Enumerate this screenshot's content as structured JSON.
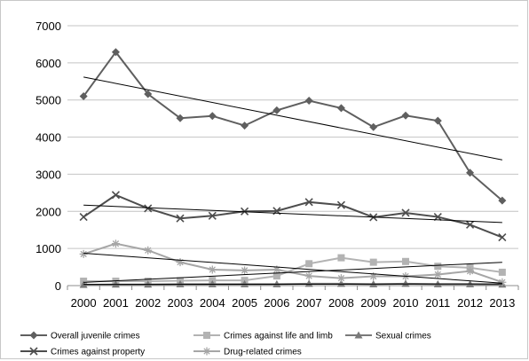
{
  "chart_data": {
    "type": "line",
    "title": "",
    "xlabel": "",
    "ylabel": "",
    "categories": [
      "2000",
      "2001",
      "2002",
      "2003",
      "2004",
      "2005",
      "2006",
      "2007",
      "2008",
      "2009",
      "2010",
      "2011",
      "2012",
      "2013"
    ],
    "ylim": [
      0,
      7000
    ],
    "yticks": [
      "0",
      "1000",
      "2000",
      "3000",
      "4000",
      "5000",
      "6000",
      "7000"
    ],
    "grid": "horizontal",
    "legend_position": "bottom",
    "trendlines": true,
    "series": [
      {
        "name": "Overall juvenile crimes",
        "marker": "diamond",
        "color": "#5f5f5f",
        "values": [
          5100,
          6290,
          5160,
          4510,
          4570,
          4310,
          4720,
          4980,
          4780,
          4270,
          4580,
          4440,
          3040,
          2290
        ]
      },
      {
        "name": "Crimes against life and limb",
        "marker": "square",
        "color": "#b3b3b3",
        "values": [
          120,
          120,
          120,
          130,
          140,
          140,
          260,
          590,
          750,
          630,
          650,
          520,
          480,
          360
        ]
      },
      {
        "name": "Sexual crimes",
        "marker": "triangle",
        "color": "#7a7a7a",
        "values": [
          20,
          30,
          30,
          40,
          40,
          40,
          40,
          50,
          50,
          40,
          50,
          40,
          40,
          30
        ]
      },
      {
        "name": "Crimes against property",
        "marker": "x",
        "color": "#4d4d4d",
        "values": [
          1850,
          2440,
          2080,
          1810,
          1880,
          2000,
          2010,
          2250,
          2170,
          1840,
          1960,
          1850,
          1640,
          1300
        ]
      },
      {
        "name": "Drug-related crimes",
        "marker": "star",
        "color": "#a6a6a6",
        "values": [
          850,
          1130,
          950,
          630,
          430,
          410,
          430,
          260,
          200,
          250,
          250,
          300,
          390,
          90
        ]
      }
    ]
  }
}
